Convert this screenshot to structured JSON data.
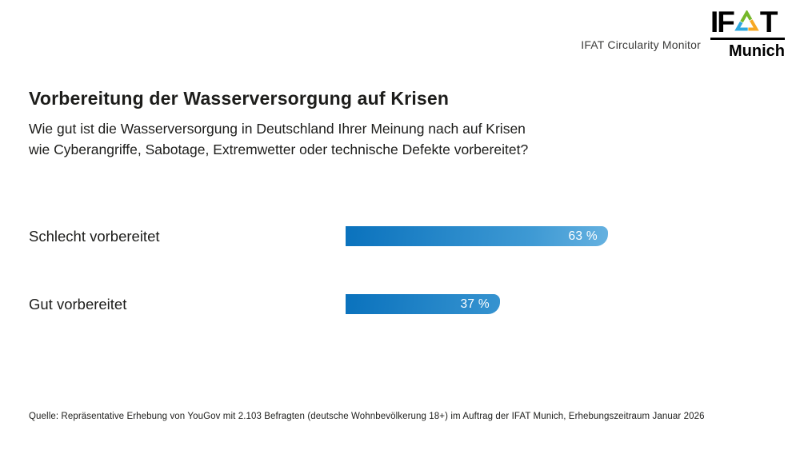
{
  "header": {
    "monitor_label": "IFAT Circularity Monitor",
    "logo": {
      "word_start": "IF",
      "word_end": "T",
      "city": "Munich",
      "triangle_colors": {
        "green": "#76b82a",
        "orange": "#f7a823",
        "blue": "#2ea8de"
      }
    }
  },
  "title": "Vorbereitung der Wasserversorgung auf Krisen",
  "subtitle_lines": {
    "line1": "Wie gut ist die Wasserversorgung in Deutschland Ihrer Meinung nach auf Krisen",
    "line2": "wie Cyberangriffe, Sabotage, Extremwetter oder technische Defekte vorbereitet?"
  },
  "chart_data": {
    "type": "bar",
    "orientation": "horizontal",
    "title": "Vorbereitung der Wasserversorgung auf Krisen",
    "categories": [
      "Schlecht vorbereitet",
      "Gut vorbereitet"
    ],
    "values": [
      63,
      37
    ],
    "value_labels": [
      "63 %",
      "37 %"
    ],
    "value_suffix": " %",
    "xlim": [
      0,
      100
    ],
    "grid": false,
    "legend": false,
    "bar_gradient": {
      "start": "#0a72bd",
      "end": "#b3e0f8"
    }
  },
  "footer": {
    "source": "Quelle: Repräsentative Erhebung von YouGov mit 2.103 Befragten (deutsche Wohnbevölkerung 18+) im Auftrag der IFAT Munich, Erhebungszeitraum Januar 2026"
  }
}
